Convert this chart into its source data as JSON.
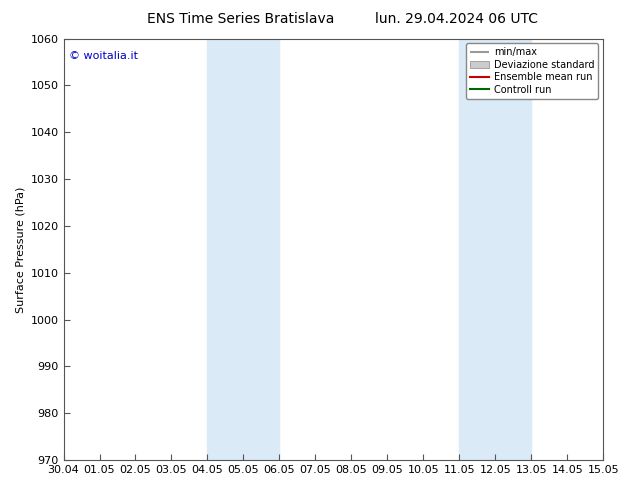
{
  "title_left": "ENS Time Series Bratislava",
  "title_right": "lun. 29.04.2024 06 UTC",
  "ylabel": "Surface Pressure (hPa)",
  "ylim": [
    970,
    1060
  ],
  "yticks": [
    970,
    980,
    990,
    1000,
    1010,
    1020,
    1030,
    1040,
    1050,
    1060
  ],
  "x_start": "2024-04-30",
  "x_end": "2024-05-15",
  "xtick_labels": [
    "30.04",
    "01.05",
    "02.05",
    "03.05",
    "04.05",
    "05.05",
    "06.05",
    "07.05",
    "08.05",
    "09.05",
    "10.05",
    "11.05",
    "12.05",
    "13.05",
    "14.05",
    "15.05"
  ],
  "shaded_bands": [
    {
      "x_start": "2024-05-04",
      "x_end": "2024-05-05",
      "color": "#daeaf7"
    },
    {
      "x_start": "2024-05-05",
      "x_end": "2024-05-06",
      "color": "#daeaf7"
    },
    {
      "x_start": "2024-05-11",
      "x_end": "2024-05-12",
      "color": "#daeaf7"
    },
    {
      "x_start": "2024-05-12",
      "x_end": "2024-05-13",
      "color": "#daeaf7"
    }
  ],
  "watermark": "© woitalia.it",
  "watermark_color": "#0000cc",
  "legend_items": [
    {
      "label": "min/max",
      "color": "#999999",
      "type": "hline"
    },
    {
      "label": "Deviazione standard",
      "color": "#cccccc",
      "type": "box"
    },
    {
      "label": "Ensemble mean run",
      "color": "#cc0000",
      "type": "line"
    },
    {
      "label": "Controll run",
      "color": "#006600",
      "type": "line"
    }
  ],
  "background_color": "#ffffff",
  "frame_color": "#555555",
  "title_fontsize": 10,
  "label_fontsize": 8,
  "tick_fontsize": 8,
  "legend_fontsize": 7
}
